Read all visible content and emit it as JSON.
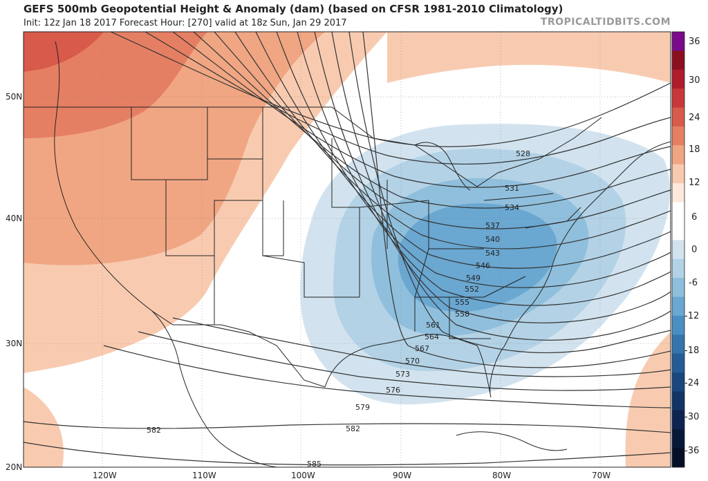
{
  "header": {
    "title": "GEFS 500mb Geopotential Height & Anomaly (dam) (based on CFSR 1981-2010 Climatology)",
    "subtitle": "Init: 12z Jan 18 2017   Forecast Hour: [270]   valid at 18z Sun, Jan 29 2017",
    "watermark": "TROPICALTIDBITS.COM"
  },
  "map": {
    "lat_labels": [
      "50N",
      "40N",
      "30N",
      "20N"
    ],
    "lon_labels": [
      "120W",
      "110W",
      "100W",
      "90W",
      "80W",
      "70W"
    ],
    "contour_labels": [
      "528",
      "531",
      "534",
      "537",
      "540",
      "543",
      "546",
      "549",
      "552",
      "555",
      "558",
      "561",
      "564",
      "567",
      "570",
      "573",
      "576",
      "579",
      "582",
      "582",
      "585"
    ]
  },
  "colorbar": {
    "labels": [
      "36",
      "30",
      "24",
      "18",
      "12",
      "6",
      "0",
      "-6",
      "-12",
      "-18",
      "-24",
      "-30",
      "-36"
    ],
    "colors": [
      "#7a0a8a",
      "#8c0f1f",
      "#b01c2c",
      "#c8383a",
      "#d85a4a",
      "#e57f63",
      "#f0a683",
      "#f8cbb0",
      "#fde8dc",
      "#ffffff",
      "#ffffff",
      "#d2e3ef",
      "#b3d2e6",
      "#8fbfdc",
      "#6aa7d1",
      "#4a8fc3",
      "#3574ad",
      "#255c96",
      "#1a477e",
      "#123466",
      "#0d2350",
      "#081838",
      "#050f26"
    ]
  }
}
